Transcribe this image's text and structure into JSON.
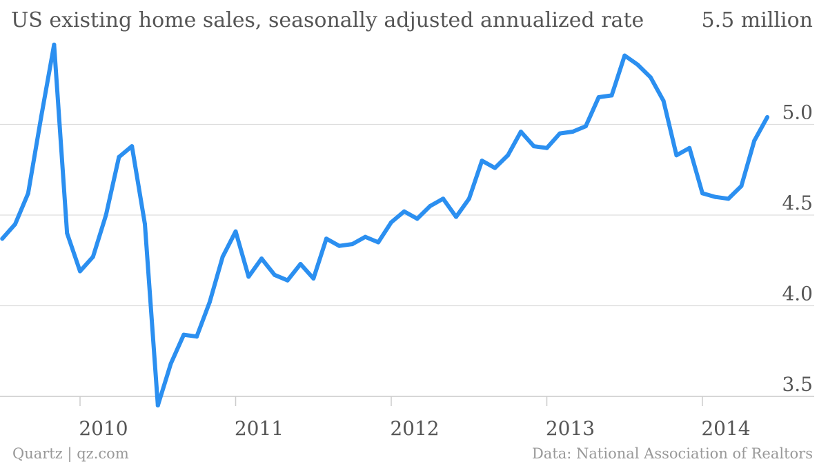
{
  "chart_data": {
    "type": "line",
    "title": "US existing home sales, seasonally adjusted annualized rate",
    "unit_label": "5.5 million",
    "ylim": [
      3.5,
      5.5
    ],
    "yticks": [
      {
        "value": 5.0,
        "label": "5.0"
      },
      {
        "value": 4.5,
        "label": "4.5"
      },
      {
        "value": 4.0,
        "label": "4.0"
      },
      {
        "value": 3.5,
        "label": "3.5"
      }
    ],
    "xticks": [
      {
        "value": "2010-01",
        "label": "2010"
      },
      {
        "value": "2011-01",
        "label": "2011"
      },
      {
        "value": "2012-01",
        "label": "2012"
      },
      {
        "value": "2013-01",
        "label": "2013"
      },
      {
        "value": "2014-01",
        "label": "2014"
      }
    ],
    "grid": true,
    "line_color": "#2b8ff0",
    "series": [
      {
        "x": [
          "2009-07",
          "2009-08",
          "2009-09",
          "2009-10",
          "2009-11",
          "2009-12",
          "2010-01",
          "2010-02",
          "2010-03",
          "2010-04",
          "2010-05",
          "2010-06",
          "2010-07",
          "2010-08",
          "2010-09",
          "2010-10",
          "2010-11",
          "2010-12",
          "2011-01",
          "2011-02",
          "2011-03",
          "2011-04",
          "2011-05",
          "2011-06",
          "2011-07",
          "2011-08",
          "2011-09",
          "2011-10",
          "2011-11",
          "2011-12",
          "2012-01",
          "2012-02",
          "2012-03",
          "2012-04",
          "2012-05",
          "2012-06",
          "2012-07",
          "2012-08",
          "2012-09",
          "2012-10",
          "2012-11",
          "2012-12",
          "2013-01",
          "2013-02",
          "2013-03",
          "2013-04",
          "2013-05",
          "2013-06",
          "2013-07",
          "2013-08",
          "2013-09",
          "2013-10",
          "2013-11",
          "2013-12",
          "2014-01",
          "2014-02",
          "2014-03",
          "2014-04",
          "2014-05",
          "2014-06"
        ],
        "values": [
          4.37,
          4.45,
          4.62,
          5.04,
          5.44,
          4.4,
          4.19,
          4.27,
          4.5,
          4.82,
          4.88,
          4.45,
          3.45,
          3.68,
          3.84,
          3.83,
          4.02,
          4.27,
          4.41,
          4.16,
          4.26,
          4.17,
          4.14,
          4.23,
          4.15,
          4.37,
          4.33,
          4.34,
          4.38,
          4.35,
          4.46,
          4.52,
          4.48,
          4.55,
          4.59,
          4.49,
          4.59,
          4.8,
          4.76,
          4.83,
          4.96,
          4.88,
          4.87,
          4.95,
          4.96,
          4.99,
          5.15,
          5.16,
          5.38,
          5.33,
          5.26,
          5.13,
          4.83,
          4.87,
          4.62,
          4.6,
          4.59,
          4.66,
          4.91,
          5.04
        ]
      }
    ]
  },
  "footer": {
    "source_left": "Quartz | qz.com",
    "source_right": "Data: National Association of Realtors"
  }
}
